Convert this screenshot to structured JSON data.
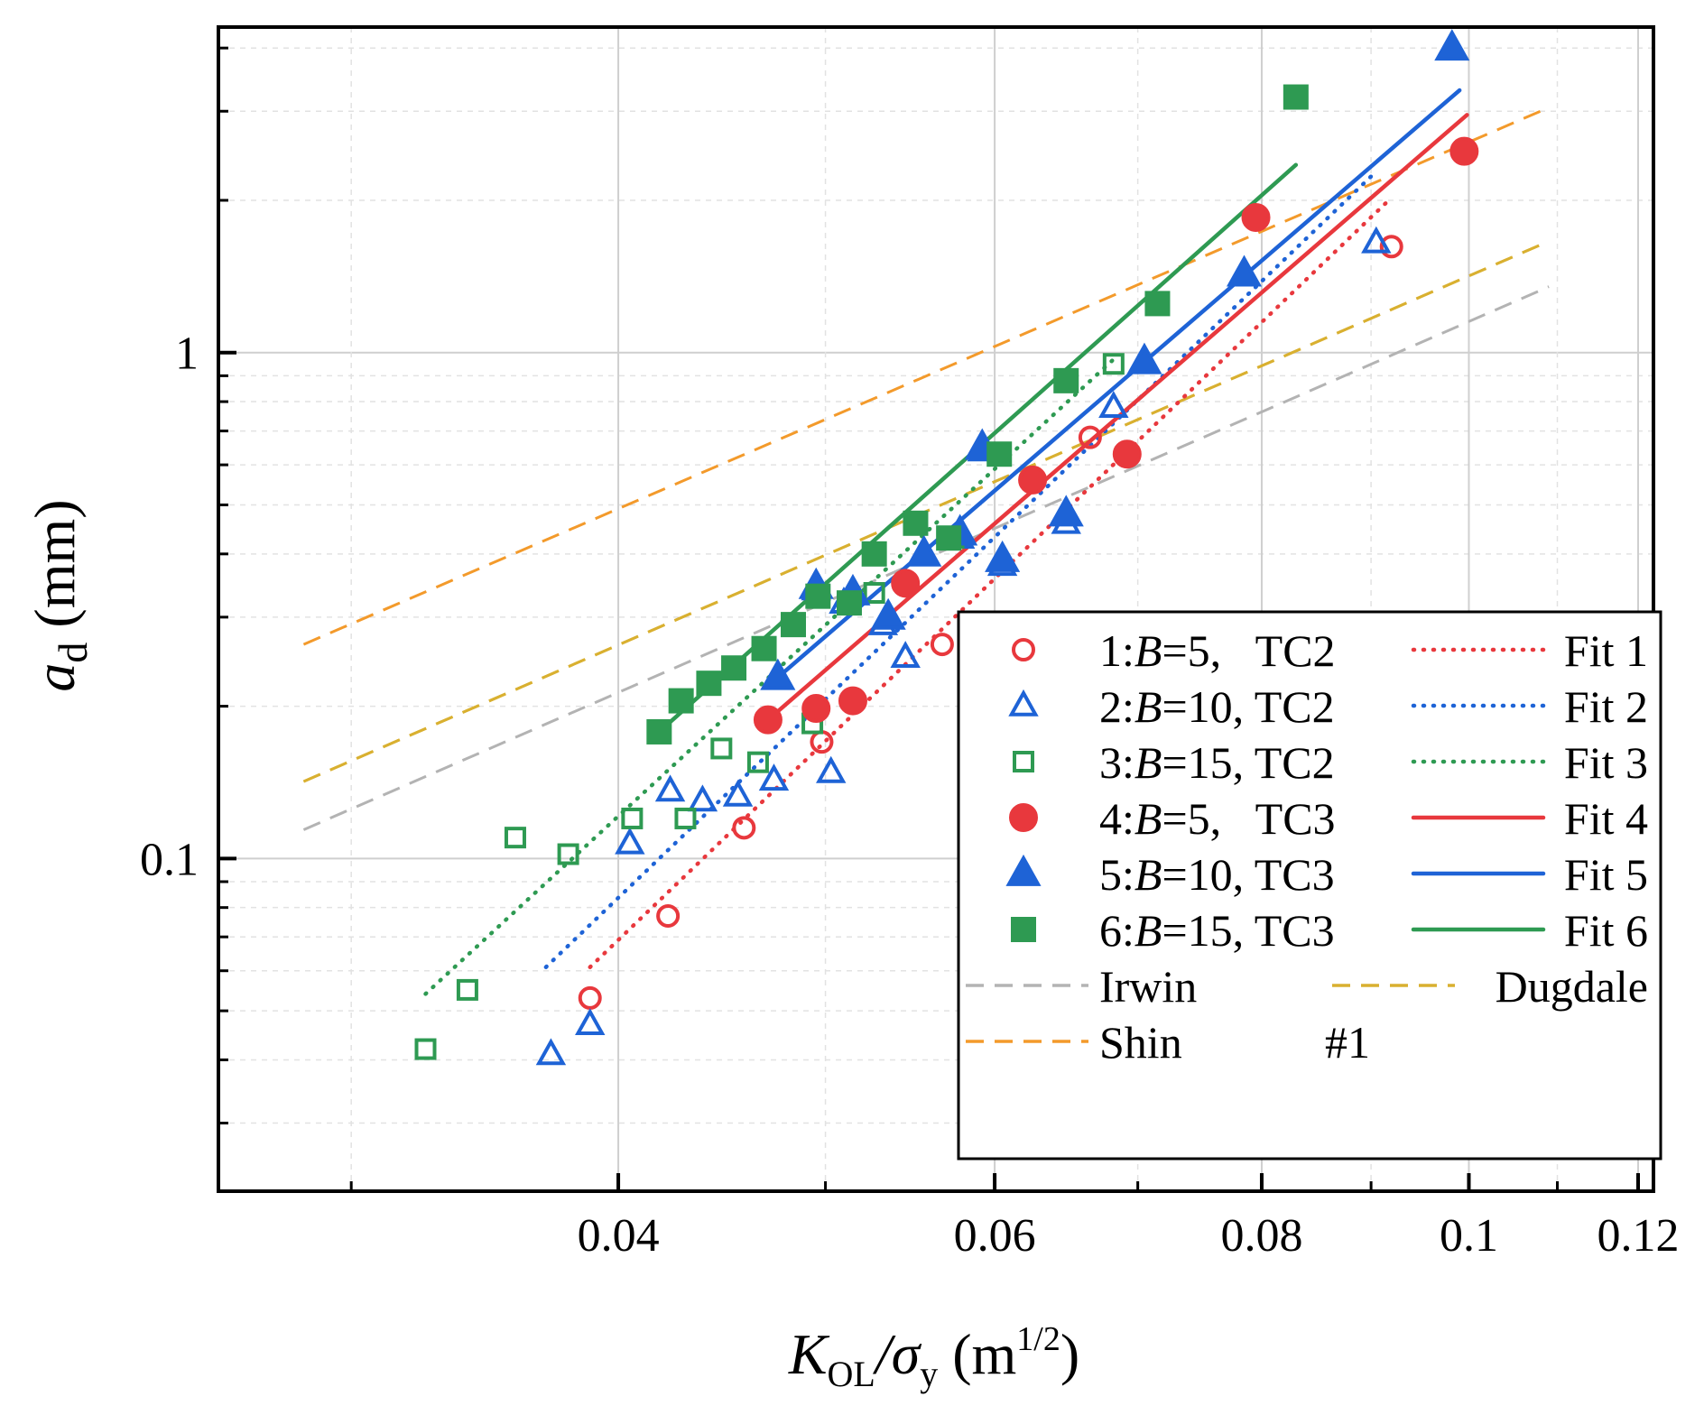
{
  "chart_data": {
    "type": "scatter",
    "x_scale": "log",
    "y_scale": "log",
    "xlim": [
      0.026,
      0.122
    ],
    "ylim": [
      0.022,
      4.4
    ],
    "xlabel_main": "K",
    "xlabel_sub": "OL",
    "xlabel_div": "/σ",
    "xlabel_div_sub": "y",
    "xlabel_unit_open": " (m",
    "xlabel_unit_exp": "1/2",
    "xlabel_unit_close": ")",
    "ylabel_main": "a",
    "ylabel_sub": "d",
    "ylabel_unit": " (mm)",
    "x_ticks": [
      {
        "value": 0.04,
        "label": "0.04"
      },
      {
        "value": 0.06,
        "label": "0.06"
      },
      {
        "value": 0.08,
        "label": "0.08"
      },
      {
        "value": 0.1,
        "label": "0.1"
      },
      {
        "value": 0.12,
        "label": "0.12"
      }
    ],
    "y_ticks": [
      {
        "value": 0.1,
        "label": "0.1"
      },
      {
        "value": 1,
        "label": "1"
      }
    ],
    "grid": true,
    "legend_position": "bottom-right",
    "series": [
      {
        "name": "1",
        "label_prefix": "1:",
        "label_var": "B",
        "label_suffix": "=5,   TC2",
        "color": "#e8383d",
        "marker": "circle",
        "filled": false,
        "points": [
          [
            0.0388,
            0.053
          ],
          [
            0.0422,
            0.077
          ],
          [
            0.0458,
            0.115
          ],
          [
            0.0498,
            0.17
          ],
          [
            0.0567,
            0.265
          ],
          [
            0.0665,
            0.68
          ],
          [
            0.092,
            1.62
          ]
        ]
      },
      {
        "name": "2",
        "label_prefix": "2:",
        "label_var": "B",
        "label_suffix": "=10, TC2",
        "color": "#1e63d6",
        "marker": "triangle",
        "filled": false,
        "points": [
          [
            0.0372,
            0.041
          ],
          [
            0.0388,
            0.047
          ],
          [
            0.0405,
            0.107
          ],
          [
            0.0423,
            0.136
          ],
          [
            0.0438,
            0.13
          ],
          [
            0.0455,
            0.133
          ],
          [
            0.0473,
            0.143
          ],
          [
            0.0495,
            0.34
          ],
          [
            0.0503,
            0.148
          ],
          [
            0.051,
            0.32
          ],
          [
            0.0532,
            0.29
          ],
          [
            0.0545,
            0.25
          ],
          [
            0.0556,
            0.4
          ],
          [
            0.0578,
            0.43
          ],
          [
            0.0592,
            0.64
          ],
          [
            0.0605,
            0.38
          ],
          [
            0.0648,
            0.46
          ],
          [
            0.0682,
            0.78
          ],
          [
            0.0905,
            1.65
          ]
        ]
      },
      {
        "name": "3",
        "label_prefix": "3:",
        "label_var": "B",
        "label_suffix": "=15, TC2",
        "color": "#2e9a52",
        "marker": "square",
        "filled": false,
        "points": [
          [
            0.0325,
            0.042
          ],
          [
            0.034,
            0.055
          ],
          [
            0.0358,
            0.11
          ],
          [
            0.0379,
            0.102
          ],
          [
            0.0406,
            0.12
          ],
          [
            0.043,
            0.12
          ],
          [
            0.0447,
            0.165
          ],
          [
            0.0465,
            0.155
          ],
          [
            0.0493,
            0.185
          ],
          [
            0.0527,
            0.335
          ],
          [
            0.0574,
            0.43
          ],
          [
            0.0682,
            0.95
          ]
        ]
      },
      {
        "name": "4",
        "label_prefix": "4:",
        "label_var": "B",
        "label_suffix": "=5,   TC3",
        "color": "#e8383d",
        "marker": "circle",
        "filled": true,
        "points": [
          [
            0.047,
            0.188
          ],
          [
            0.0495,
            0.198
          ],
          [
            0.0515,
            0.205
          ],
          [
            0.0545,
            0.35
          ],
          [
            0.0625,
            0.56
          ],
          [
            0.0692,
            0.63
          ],
          [
            0.0795,
            1.85
          ],
          [
            0.0995,
            2.5
          ]
        ]
      },
      {
        "name": "5",
        "label_prefix": "5:",
        "label_var": "B",
        "label_suffix": "=10, TC3",
        "color": "#1e63d6",
        "marker": "triangle",
        "filled": true,
        "points": [
          [
            0.0475,
            0.228
          ],
          [
            0.0495,
            0.345
          ],
          [
            0.0515,
            0.335
          ],
          [
            0.0535,
            0.3
          ],
          [
            0.0556,
            0.4
          ],
          [
            0.0578,
            0.44
          ],
          [
            0.0592,
            0.65
          ],
          [
            0.0605,
            0.39
          ],
          [
            0.0648,
            0.48
          ],
          [
            0.0705,
            0.96
          ],
          [
            0.0785,
            1.43
          ],
          [
            0.0982,
            4.0
          ]
        ]
      },
      {
        "name": "6",
        "label_prefix": "6:",
        "label_var": "B",
        "label_suffix": "=15, TC3",
        "color": "#2e9a52",
        "marker": "square",
        "filled": true,
        "points": [
          [
            0.0418,
            0.178
          ],
          [
            0.0428,
            0.205
          ],
          [
            0.0441,
            0.222
          ],
          [
            0.0453,
            0.238
          ],
          [
            0.0468,
            0.26
          ],
          [
            0.0483,
            0.29
          ],
          [
            0.0496,
            0.33
          ],
          [
            0.0513,
            0.32
          ],
          [
            0.0527,
            0.4
          ],
          [
            0.0551,
            0.46
          ],
          [
            0.0571,
            0.43
          ],
          [
            0.0603,
            0.63
          ],
          [
            0.0648,
            0.88
          ],
          [
            0.0715,
            1.25
          ],
          [
            0.083,
            3.2
          ]
        ]
      }
    ],
    "fits": [
      {
        "name": "Fit 1",
        "color": "#e8383d",
        "style": "dotted",
        "x": [
          0.0388,
          0.0915
        ],
        "y": [
          0.061,
          1.98
        ]
      },
      {
        "name": "Fit 2",
        "color": "#1e63d6",
        "style": "dotted",
        "x": [
          0.037,
          0.0905
        ],
        "y": [
          0.061,
          2.28
        ]
      },
      {
        "name": "Fit 3",
        "color": "#2e9a52",
        "style": "dotted",
        "x": [
          0.0325,
          0.0682
        ],
        "y": [
          0.054,
          0.97
        ]
      },
      {
        "name": "Fit 4",
        "color": "#e8383d",
        "style": "solid",
        "x": [
          0.047,
          0.0998
        ],
        "y": [
          0.188,
          2.95
        ]
      },
      {
        "name": "Fit 5",
        "color": "#1e63d6",
        "style": "solid",
        "x": [
          0.0475,
          0.099
        ],
        "y": [
          0.228,
          3.3
        ]
      },
      {
        "name": "Fit 6",
        "color": "#2e9a52",
        "style": "solid",
        "x": [
          0.0418,
          0.083
        ],
        "y": [
          0.178,
          2.35
        ]
      }
    ],
    "models": [
      {
        "name": "Irwin",
        "color": "#b3b3b3",
        "x": [
          0.0285,
          0.109
        ],
        "y": [
          0.114,
          1.35
        ]
      },
      {
        "name": "Dugdale",
        "color": "#d9b030",
        "x": [
          0.0285,
          0.109
        ],
        "y": [
          0.142,
          1.66
        ],
        "x2": [
          0.0285,
          0.109
        ],
        "y2": [
          0.142,
          1.66
        ]
      },
      {
        "name": "Shin",
        "color": "#f39a2b",
        "x": [
          0.0285,
          0.109
        ],
        "y": [
          0.265,
          3.05
        ]
      }
    ],
    "dugdale_lower": {
      "x": [
        0.0285,
        0.109
      ],
      "y": [
        0.142,
        1.66
      ]
    },
    "dugdale_upper": {
      "x": [
        0.0285,
        0.109
      ],
      "y": [
        0.142,
        1.66
      ]
    },
    "legend_extra_text": "#1"
  }
}
